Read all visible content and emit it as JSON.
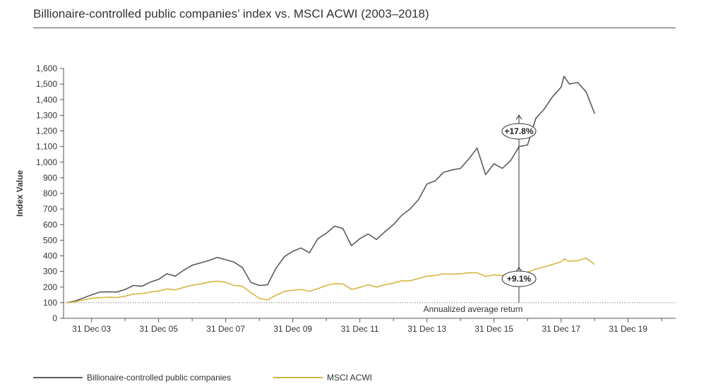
{
  "title": "Billionaire-controlled public companies’ index vs. MSCI ACWI (2003–2018)",
  "colors": {
    "billionaire": "#5a5b5e",
    "msci": "#d8b544",
    "axis": "#555555"
  },
  "chart_data": {
    "type": "line",
    "title": "Billionaire-controlled public companies’ index vs. MSCI ACWI (2003–2018)",
    "xlabel": "",
    "ylabel": "Index Value",
    "ylim": [
      0,
      1600
    ],
    "xlim": [
      "2003-03-01",
      "2021-06-01"
    ],
    "yticks": [
      0,
      100,
      200,
      300,
      400,
      500,
      600,
      700,
      800,
      900,
      1000,
      1100,
      1200,
      1300,
      1400,
      1500,
      1600
    ],
    "ytick_labels": [
      "0",
      "100",
      "200",
      "300",
      "400",
      "500",
      "600",
      "700",
      "800",
      "900",
      "1,000",
      "1,100",
      "1,200",
      "1,300",
      "1,400",
      "1,500",
      "1,600"
    ],
    "xticks": [
      "2003-12-31",
      "2005-12-31",
      "2007-12-31",
      "2009-12-31",
      "2011-12-31",
      "2013-12-31",
      "2015-12-31",
      "2017-12-31",
      "2019-12-31"
    ],
    "xtick_labels": [
      "31 Dec 03",
      "31 Dec 05",
      "31 Dec 07",
      "31 Dec 09",
      "31 Dec 11",
      "31 Dec 13",
      "31 Dec 15",
      "31 Dec 17",
      "31 Dec 19"
    ],
    "grid": false,
    "legend_position": "bottom",
    "series": [
      {
        "name": "Billionaire-controlled public companies",
        "color": "#5a5b5e",
        "points": [
          [
            "2003-03-31",
            100
          ],
          [
            "2003-06-30",
            110
          ],
          [
            "2003-09-30",
            130
          ],
          [
            "2003-12-31",
            150
          ],
          [
            "2004-03-31",
            168
          ],
          [
            "2004-06-30",
            170
          ],
          [
            "2004-09-30",
            168
          ],
          [
            "2004-12-31",
            185
          ],
          [
            "2005-03-31",
            210
          ],
          [
            "2005-06-30",
            205
          ],
          [
            "2005-09-30",
            232
          ],
          [
            "2005-12-31",
            250
          ],
          [
            "2006-03-31",
            285
          ],
          [
            "2006-06-30",
            270
          ],
          [
            "2006-09-30",
            308
          ],
          [
            "2006-12-31",
            340
          ],
          [
            "2007-03-31",
            355
          ],
          [
            "2007-06-30",
            370
          ],
          [
            "2007-09-30",
            390
          ],
          [
            "2007-12-31",
            375
          ],
          [
            "2008-03-31",
            360
          ],
          [
            "2008-06-30",
            325
          ],
          [
            "2008-09-30",
            230
          ],
          [
            "2008-12-31",
            210
          ],
          [
            "2009-03-31",
            215
          ],
          [
            "2009-06-30",
            320
          ],
          [
            "2009-09-30",
            395
          ],
          [
            "2009-12-31",
            430
          ],
          [
            "2010-03-31",
            450
          ],
          [
            "2010-06-30",
            420
          ],
          [
            "2010-09-30",
            510
          ],
          [
            "2010-12-31",
            545
          ],
          [
            "2011-03-31",
            590
          ],
          [
            "2011-06-30",
            575
          ],
          [
            "2011-09-30",
            465
          ],
          [
            "2011-12-31",
            510
          ],
          [
            "2012-03-31",
            540
          ],
          [
            "2012-06-30",
            505
          ],
          [
            "2012-09-30",
            555
          ],
          [
            "2012-12-31",
            600
          ],
          [
            "2013-03-31",
            660
          ],
          [
            "2013-06-30",
            700
          ],
          [
            "2013-09-30",
            760
          ],
          [
            "2013-12-31",
            860
          ],
          [
            "2014-03-31",
            880
          ],
          [
            "2014-06-30",
            935
          ],
          [
            "2014-09-30",
            950
          ],
          [
            "2014-12-31",
            960
          ],
          [
            "2015-03-31",
            1020
          ],
          [
            "2015-06-30",
            1090
          ],
          [
            "2015-09-30",
            920
          ],
          [
            "2015-12-31",
            990
          ],
          [
            "2016-03-31",
            960
          ],
          [
            "2016-06-30",
            1010
          ],
          [
            "2016-09-30",
            1100
          ],
          [
            "2016-12-31",
            1110
          ],
          [
            "2017-03-31",
            1280
          ],
          [
            "2017-06-30",
            1340
          ],
          [
            "2017-09-30",
            1420
          ],
          [
            "2017-12-31",
            1480
          ],
          [
            "2018-01-31",
            1550
          ],
          [
            "2018-03-31",
            1500
          ],
          [
            "2018-06-30",
            1510
          ],
          [
            "2018-09-30",
            1450
          ],
          [
            "2018-12-31",
            1310
          ]
        ]
      },
      {
        "name": "MSCI ACWI",
        "color": "#d8b544",
        "points": [
          [
            "2003-03-31",
            100
          ],
          [
            "2003-06-30",
            105
          ],
          [
            "2003-09-30",
            118
          ],
          [
            "2003-12-31",
            128
          ],
          [
            "2004-03-31",
            132
          ],
          [
            "2004-06-30",
            135
          ],
          [
            "2004-09-30",
            133
          ],
          [
            "2004-12-31",
            142
          ],
          [
            "2005-03-31",
            155
          ],
          [
            "2005-06-30",
            158
          ],
          [
            "2005-09-30",
            168
          ],
          [
            "2005-12-31",
            175
          ],
          [
            "2006-03-31",
            188
          ],
          [
            "2006-06-30",
            182
          ],
          [
            "2006-09-30",
            198
          ],
          [
            "2006-12-31",
            212
          ],
          [
            "2007-03-31",
            220
          ],
          [
            "2007-06-30",
            232
          ],
          [
            "2007-09-30",
            238
          ],
          [
            "2007-12-31",
            230
          ],
          [
            "2008-03-31",
            210
          ],
          [
            "2008-06-30",
            205
          ],
          [
            "2008-09-30",
            165
          ],
          [
            "2008-12-31",
            128
          ],
          [
            "2009-03-31",
            118
          ],
          [
            "2009-06-30",
            148
          ],
          [
            "2009-09-30",
            172
          ],
          [
            "2009-12-31",
            180
          ],
          [
            "2010-03-31",
            185
          ],
          [
            "2010-06-30",
            172
          ],
          [
            "2010-09-30",
            190
          ],
          [
            "2010-12-31",
            210
          ],
          [
            "2011-03-31",
            222
          ],
          [
            "2011-06-30",
            220
          ],
          [
            "2011-09-30",
            185
          ],
          [
            "2011-12-31",
            198
          ],
          [
            "2012-03-31",
            215
          ],
          [
            "2012-06-30",
            200
          ],
          [
            "2012-09-30",
            215
          ],
          [
            "2012-12-31",
            225
          ],
          [
            "2013-03-31",
            240
          ],
          [
            "2013-06-30",
            240
          ],
          [
            "2013-09-30",
            255
          ],
          [
            "2013-12-31",
            270
          ],
          [
            "2014-03-31",
            275
          ],
          [
            "2014-06-30",
            285
          ],
          [
            "2014-09-30",
            282
          ],
          [
            "2014-12-31",
            285
          ],
          [
            "2015-03-31",
            292
          ],
          [
            "2015-06-30",
            292
          ],
          [
            "2015-09-30",
            268
          ],
          [
            "2015-12-31",
            278
          ],
          [
            "2016-03-31",
            275
          ],
          [
            "2016-06-30",
            280
          ],
          [
            "2016-09-30",
            290
          ],
          [
            "2016-12-31",
            295
          ],
          [
            "2017-03-31",
            315
          ],
          [
            "2017-06-30",
            330
          ],
          [
            "2017-09-30",
            345
          ],
          [
            "2017-12-31",
            362
          ],
          [
            "2018-01-31",
            380
          ],
          [
            "2018-03-31",
            365
          ],
          [
            "2018-06-30",
            370
          ],
          [
            "2018-09-30",
            385
          ],
          [
            "2018-12-31",
            345
          ]
        ]
      }
    ],
    "baseline": {
      "value": 100,
      "label": "Annualized average return"
    },
    "annotations": [
      {
        "label": "+17.8%",
        "series": "Billionaire-controlled public companies"
      },
      {
        "label": "+9.1%",
        "series": "MSCI ACWI"
      }
    ]
  }
}
